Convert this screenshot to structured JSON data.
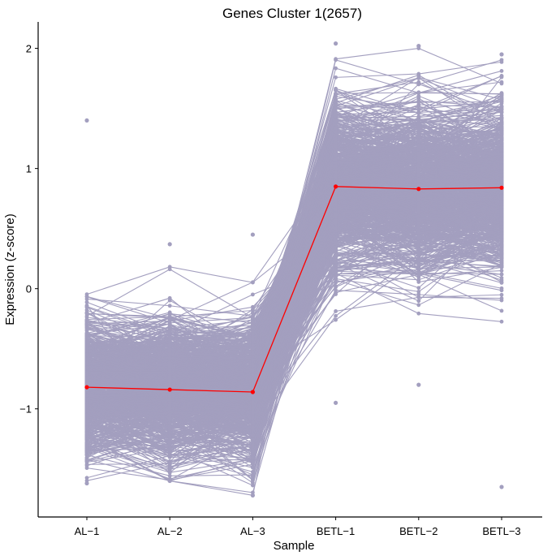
{
  "chart_data": {
    "type": "line",
    "title": "Genes Cluster 1(2657)",
    "xlabel": "Sample",
    "ylabel": "Expression (z-score)",
    "categories": [
      "AL−1",
      "AL−2",
      "AL−3",
      "BETL−1",
      "BETL−2",
      "BETL−3"
    ],
    "yticks": [
      -1,
      0,
      1,
      2
    ],
    "ylim": [
      -1.9,
      2.22
    ],
    "grid": false,
    "gene_count": 2657,
    "gene_line_color": "#a39fbf",
    "gene_value_range": {
      "min": [
        -1.62,
        -1.6,
        -1.72,
        -0.95,
        -0.8,
        -1.65
      ],
      "max": [
        1.4,
        0.37,
        0.45,
        2.04,
        2.02,
        1.95
      ]
    },
    "series": [
      {
        "values": [
          -0.82,
          -0.84,
          -0.86,
          0.85,
          0.83,
          0.84
        ],
        "color": "#ff0000"
      }
    ]
  }
}
